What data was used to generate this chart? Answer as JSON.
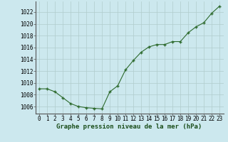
{
  "x": [
    0,
    1,
    2,
    3,
    4,
    5,
    6,
    7,
    8,
    9,
    10,
    11,
    12,
    13,
    14,
    15,
    16,
    17,
    18,
    19,
    20,
    21,
    22,
    23
  ],
  "y": [
    1009.0,
    1009.0,
    1008.5,
    1007.5,
    1006.5,
    1006.0,
    1005.8,
    1005.7,
    1005.6,
    1008.5,
    1009.5,
    1012.2,
    1013.8,
    1015.2,
    1016.1,
    1016.5,
    1016.5,
    1017.0,
    1017.0,
    1018.5,
    1019.5,
    1020.2,
    1021.8,
    1023.0
  ],
  "line_color": "#2d6a2d",
  "marker_color": "#2d6a2d",
  "bg_color": "#cce8ee",
  "grid_color": "#b0cccc",
  "plot_bg": "#cce8ee",
  "xlabel": "Graphe pression niveau de la mer (hPa)",
  "ylabel_ticks": [
    1006,
    1008,
    1010,
    1012,
    1014,
    1016,
    1018,
    1020,
    1022
  ],
  "ylim": [
    1004.8,
    1023.8
  ],
  "xlim": [
    -0.5,
    23.5
  ],
  "xtick_labels": [
    "0",
    "1",
    "2",
    "3",
    "4",
    "5",
    "6",
    "7",
    "8",
    "9",
    "10",
    "11",
    "12",
    "13",
    "14",
    "15",
    "16",
    "17",
    "18",
    "19",
    "20",
    "21",
    "22",
    "23"
  ],
  "label_fontsize": 6.5,
  "tick_fontsize": 5.5
}
